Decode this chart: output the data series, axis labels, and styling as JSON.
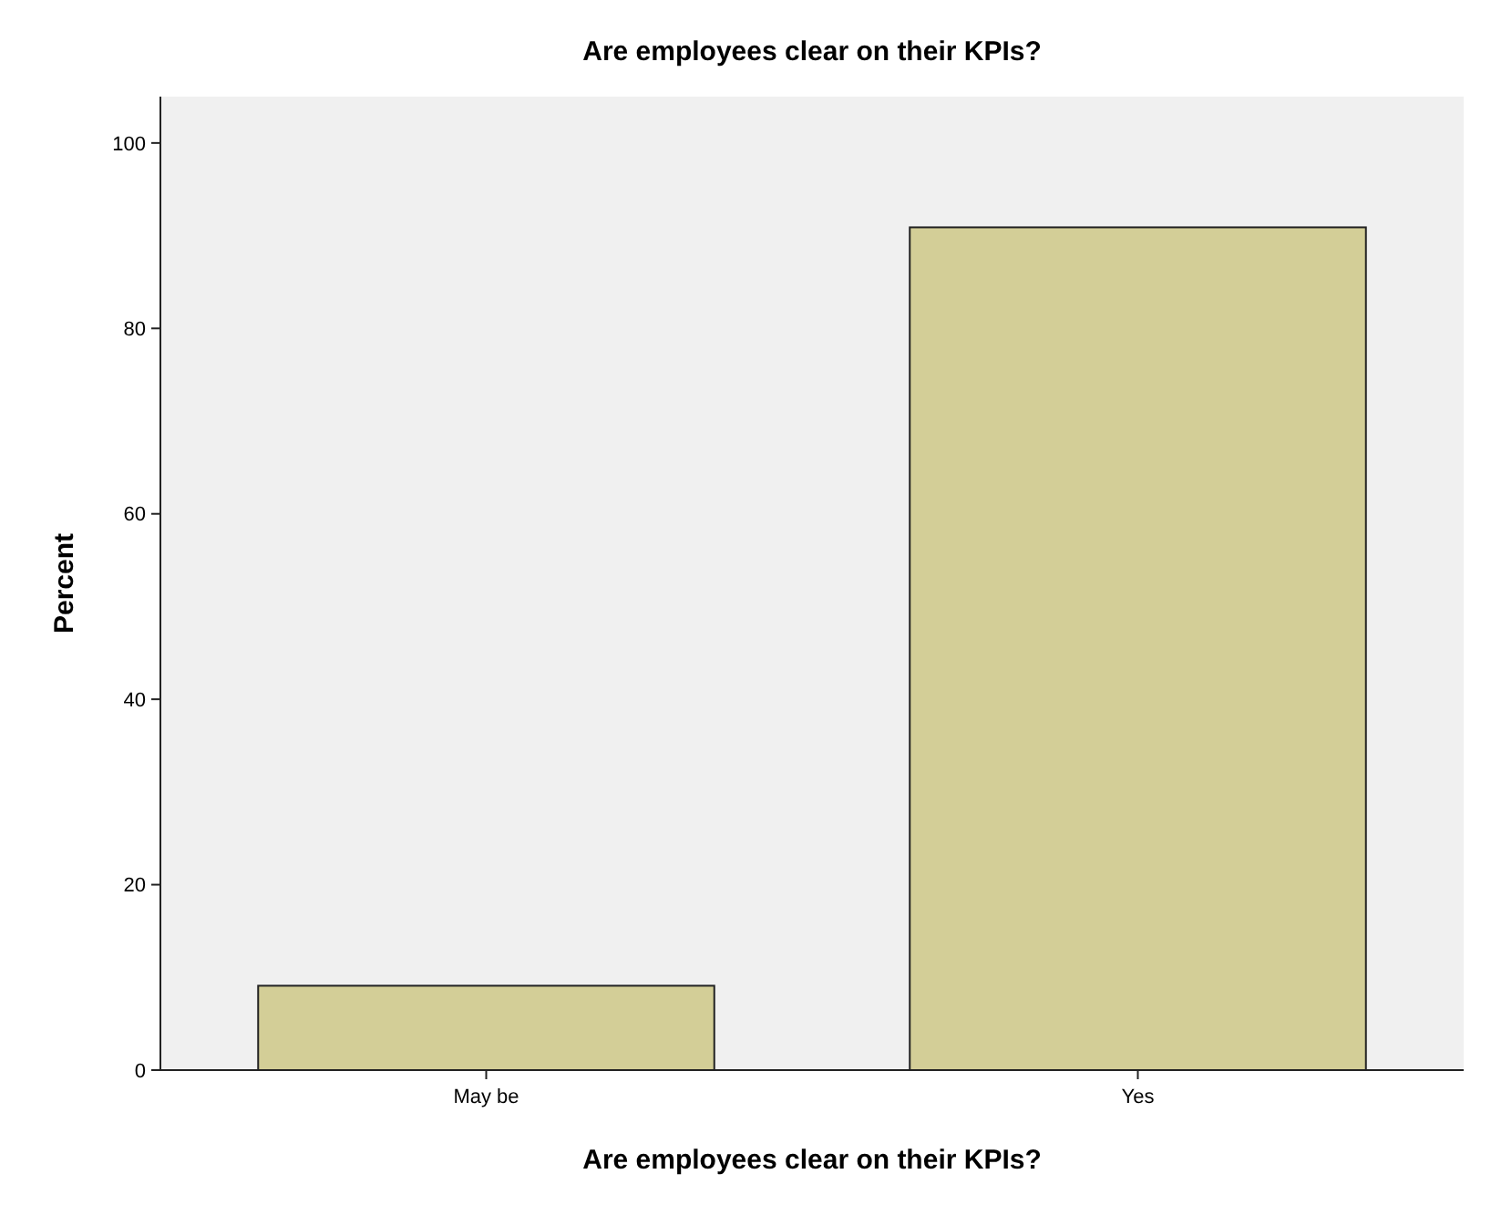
{
  "chart_data": {
    "type": "bar",
    "title": "Are employees clear on their KPIs?",
    "xlabel": "Are employees clear on their KPIs?",
    "ylabel": "Percent",
    "categories": [
      "May be",
      "Yes"
    ],
    "values": [
      9.1,
      90.9
    ],
    "color": "#d3ce97",
    "ylim": [
      0,
      105
    ],
    "yticks": [
      0,
      20,
      40,
      60,
      80,
      100
    ],
    "grid": false
  }
}
